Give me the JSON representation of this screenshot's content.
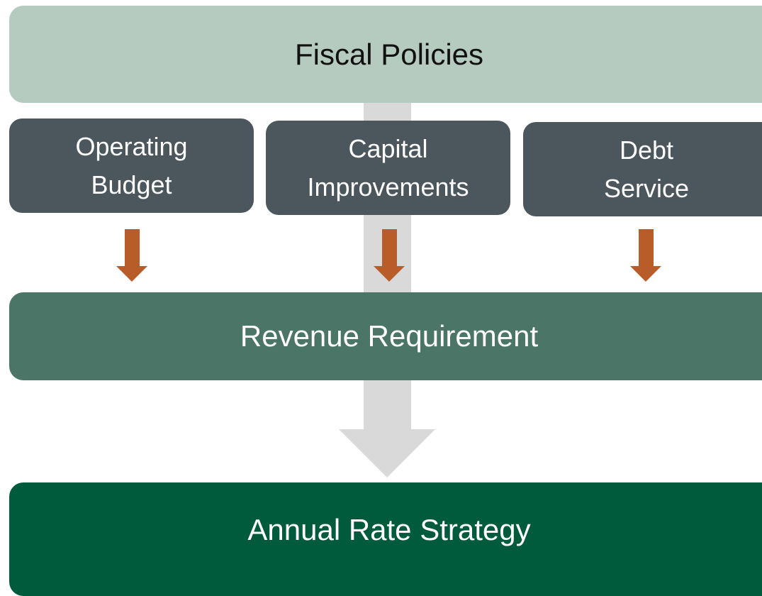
{
  "top": {
    "label": "Fiscal Policies"
  },
  "inputs": [
    {
      "lines": [
        "Operating",
        "Budget"
      ]
    },
    {
      "lines": [
        "Capital",
        "Improvements"
      ]
    },
    {
      "lines": [
        "Debt",
        "Service"
      ]
    }
  ],
  "middle": {
    "label": "Revenue Requirement"
  },
  "bottom": {
    "label": "Annual Rate Strategy"
  }
}
